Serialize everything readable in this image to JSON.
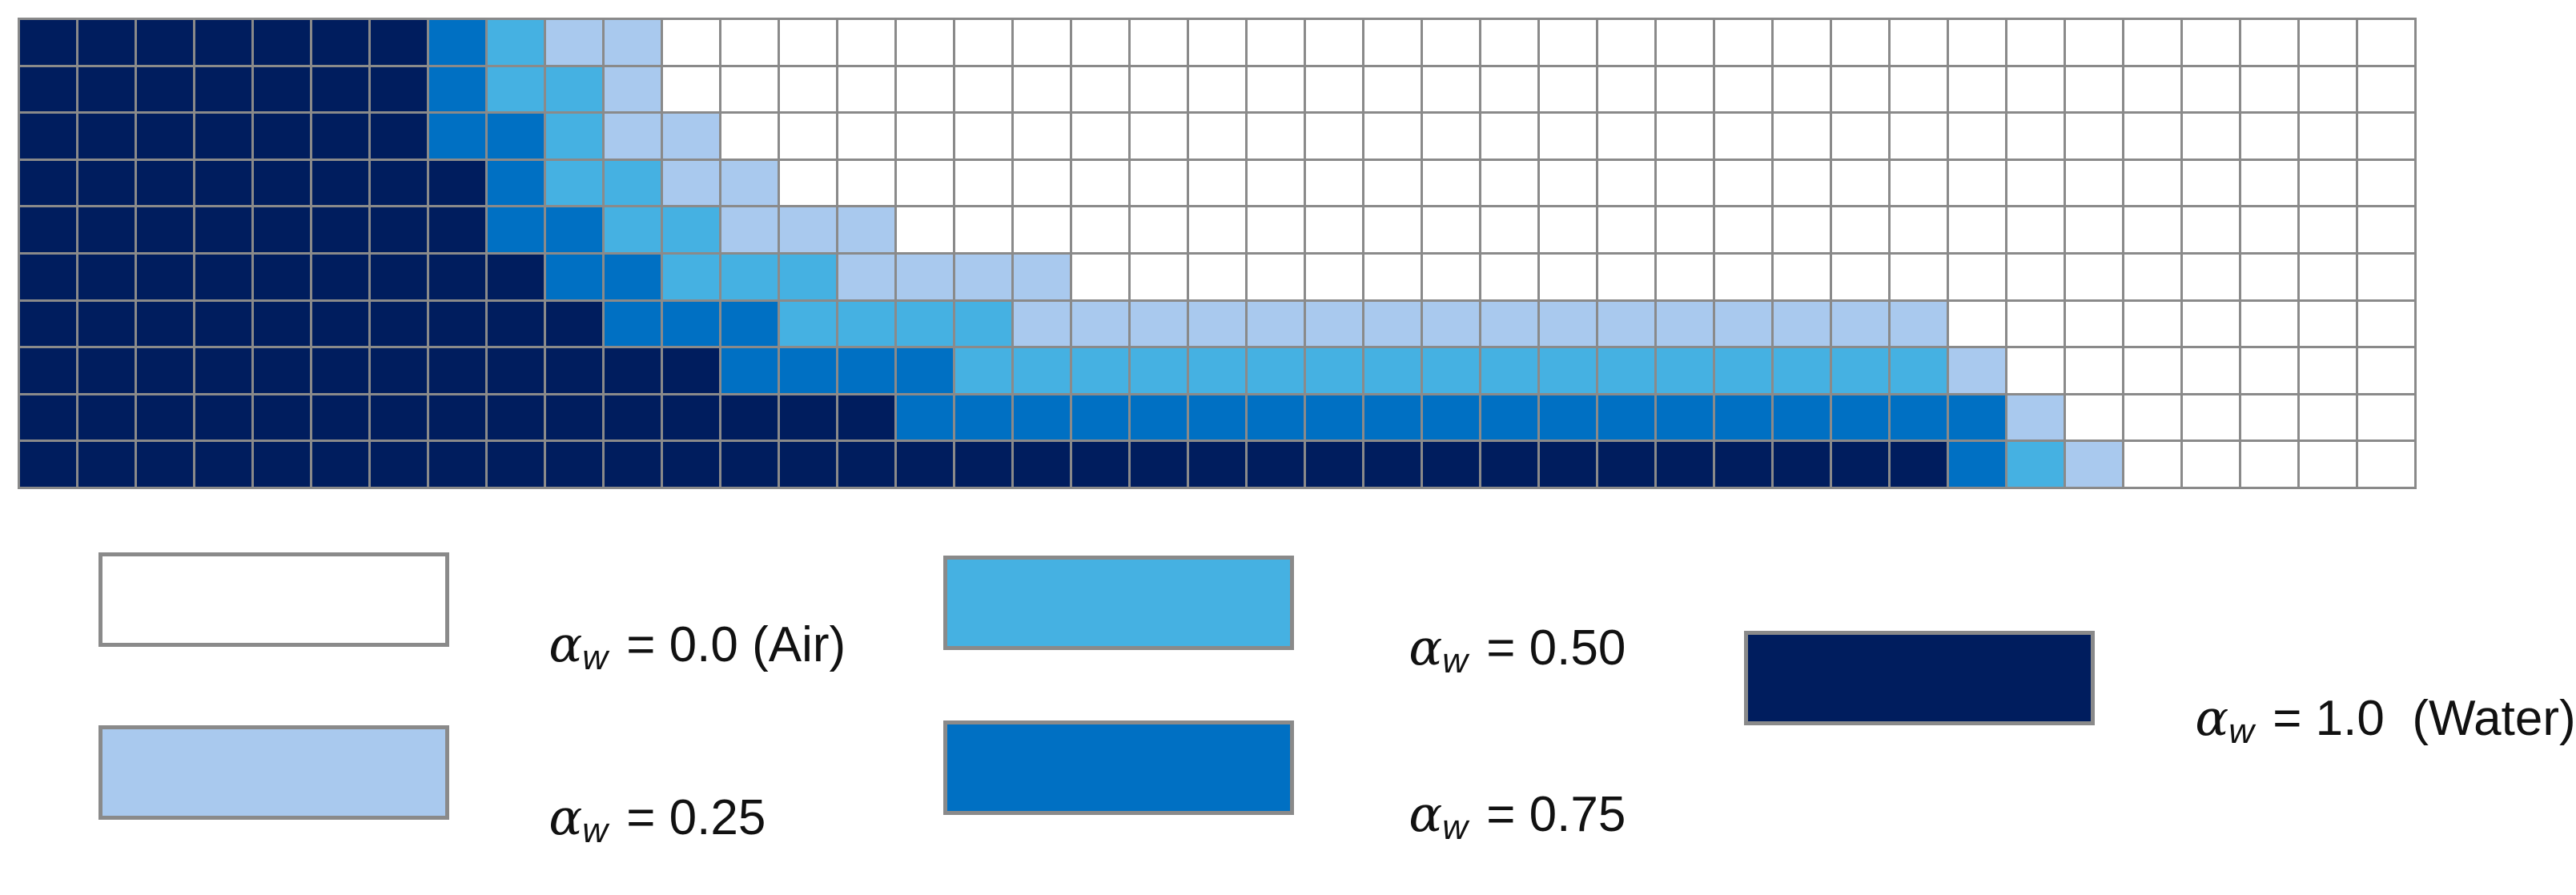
{
  "palette": {
    "0": "#ffffff",
    "1": "#a9c9ee",
    "2": "#45b1e2",
    "3": "#0070c3",
    "4": "#001d5e"
  },
  "grid": {
    "columns": 41,
    "rows": [
      [
        4,
        4,
        4,
        4,
        4,
        4,
        4,
        3,
        2,
        1,
        1,
        0,
        0,
        0,
        0,
        0,
        0,
        0,
        0,
        0,
        0,
        0,
        0,
        0,
        0,
        0,
        0,
        0,
        0,
        0,
        0,
        0,
        0,
        0,
        0,
        0,
        0,
        0,
        0,
        0,
        0
      ],
      [
        4,
        4,
        4,
        4,
        4,
        4,
        4,
        3,
        2,
        2,
        1,
        0,
        0,
        0,
        0,
        0,
        0,
        0,
        0,
        0,
        0,
        0,
        0,
        0,
        0,
        0,
        0,
        0,
        0,
        0,
        0,
        0,
        0,
        0,
        0,
        0,
        0,
        0,
        0,
        0,
        0
      ],
      [
        4,
        4,
        4,
        4,
        4,
        4,
        4,
        3,
        3,
        2,
        1,
        1,
        0,
        0,
        0,
        0,
        0,
        0,
        0,
        0,
        0,
        0,
        0,
        0,
        0,
        0,
        0,
        0,
        0,
        0,
        0,
        0,
        0,
        0,
        0,
        0,
        0,
        0,
        0,
        0,
        0
      ],
      [
        4,
        4,
        4,
        4,
        4,
        4,
        4,
        4,
        3,
        2,
        2,
        1,
        1,
        0,
        0,
        0,
        0,
        0,
        0,
        0,
        0,
        0,
        0,
        0,
        0,
        0,
        0,
        0,
        0,
        0,
        0,
        0,
        0,
        0,
        0,
        0,
        0,
        0,
        0,
        0,
        0
      ],
      [
        4,
        4,
        4,
        4,
        4,
        4,
        4,
        4,
        3,
        3,
        2,
        2,
        1,
        1,
        1,
        0,
        0,
        0,
        0,
        0,
        0,
        0,
        0,
        0,
        0,
        0,
        0,
        0,
        0,
        0,
        0,
        0,
        0,
        0,
        0,
        0,
        0,
        0,
        0,
        0,
        0
      ],
      [
        4,
        4,
        4,
        4,
        4,
        4,
        4,
        4,
        4,
        3,
        3,
        2,
        2,
        2,
        1,
        1,
        1,
        1,
        0,
        0,
        0,
        0,
        0,
        0,
        0,
        0,
        0,
        0,
        0,
        0,
        0,
        0,
        0,
        0,
        0,
        0,
        0,
        0,
        0,
        0,
        0
      ],
      [
        4,
        4,
        4,
        4,
        4,
        4,
        4,
        4,
        4,
        4,
        3,
        3,
        3,
        2,
        2,
        2,
        2,
        1,
        1,
        1,
        1,
        1,
        1,
        1,
        1,
        1,
        1,
        1,
        1,
        1,
        1,
        1,
        1,
        0,
        0,
        0,
        0,
        0,
        0,
        0,
        0
      ],
      [
        4,
        4,
        4,
        4,
        4,
        4,
        4,
        4,
        4,
        4,
        4,
        4,
        3,
        3,
        3,
        3,
        2,
        2,
        2,
        2,
        2,
        2,
        2,
        2,
        2,
        2,
        2,
        2,
        2,
        2,
        2,
        2,
        2,
        1,
        0,
        0,
        0,
        0,
        0,
        0,
        0
      ],
      [
        4,
        4,
        4,
        4,
        4,
        4,
        4,
        4,
        4,
        4,
        4,
        4,
        4,
        4,
        4,
        3,
        3,
        3,
        3,
        3,
        3,
        3,
        3,
        3,
        3,
        3,
        3,
        3,
        3,
        3,
        3,
        3,
        3,
        3,
        1,
        0,
        0,
        0,
        0,
        0,
        0
      ],
      [
        4,
        4,
        4,
        4,
        4,
        4,
        4,
        4,
        4,
        4,
        4,
        4,
        4,
        4,
        4,
        4,
        4,
        4,
        4,
        4,
        4,
        4,
        4,
        4,
        4,
        4,
        4,
        4,
        4,
        4,
        4,
        4,
        4,
        3,
        2,
        1,
        0,
        0,
        0,
        0,
        0
      ]
    ]
  },
  "legend": {
    "symbol": "α",
    "subscript": "w",
    "items": [
      {
        "color": "#ffffff",
        "text": " = 0.0 (Air)"
      },
      {
        "color": "#a9c9ee",
        "text": " = 0.25"
      },
      {
        "color": "#45b1e2",
        "text": " = 0.50"
      },
      {
        "color": "#0070c3",
        "text": " = 0.75"
      },
      {
        "color": "#001d5e",
        "text": " = 1.0  (Water)"
      }
    ]
  }
}
